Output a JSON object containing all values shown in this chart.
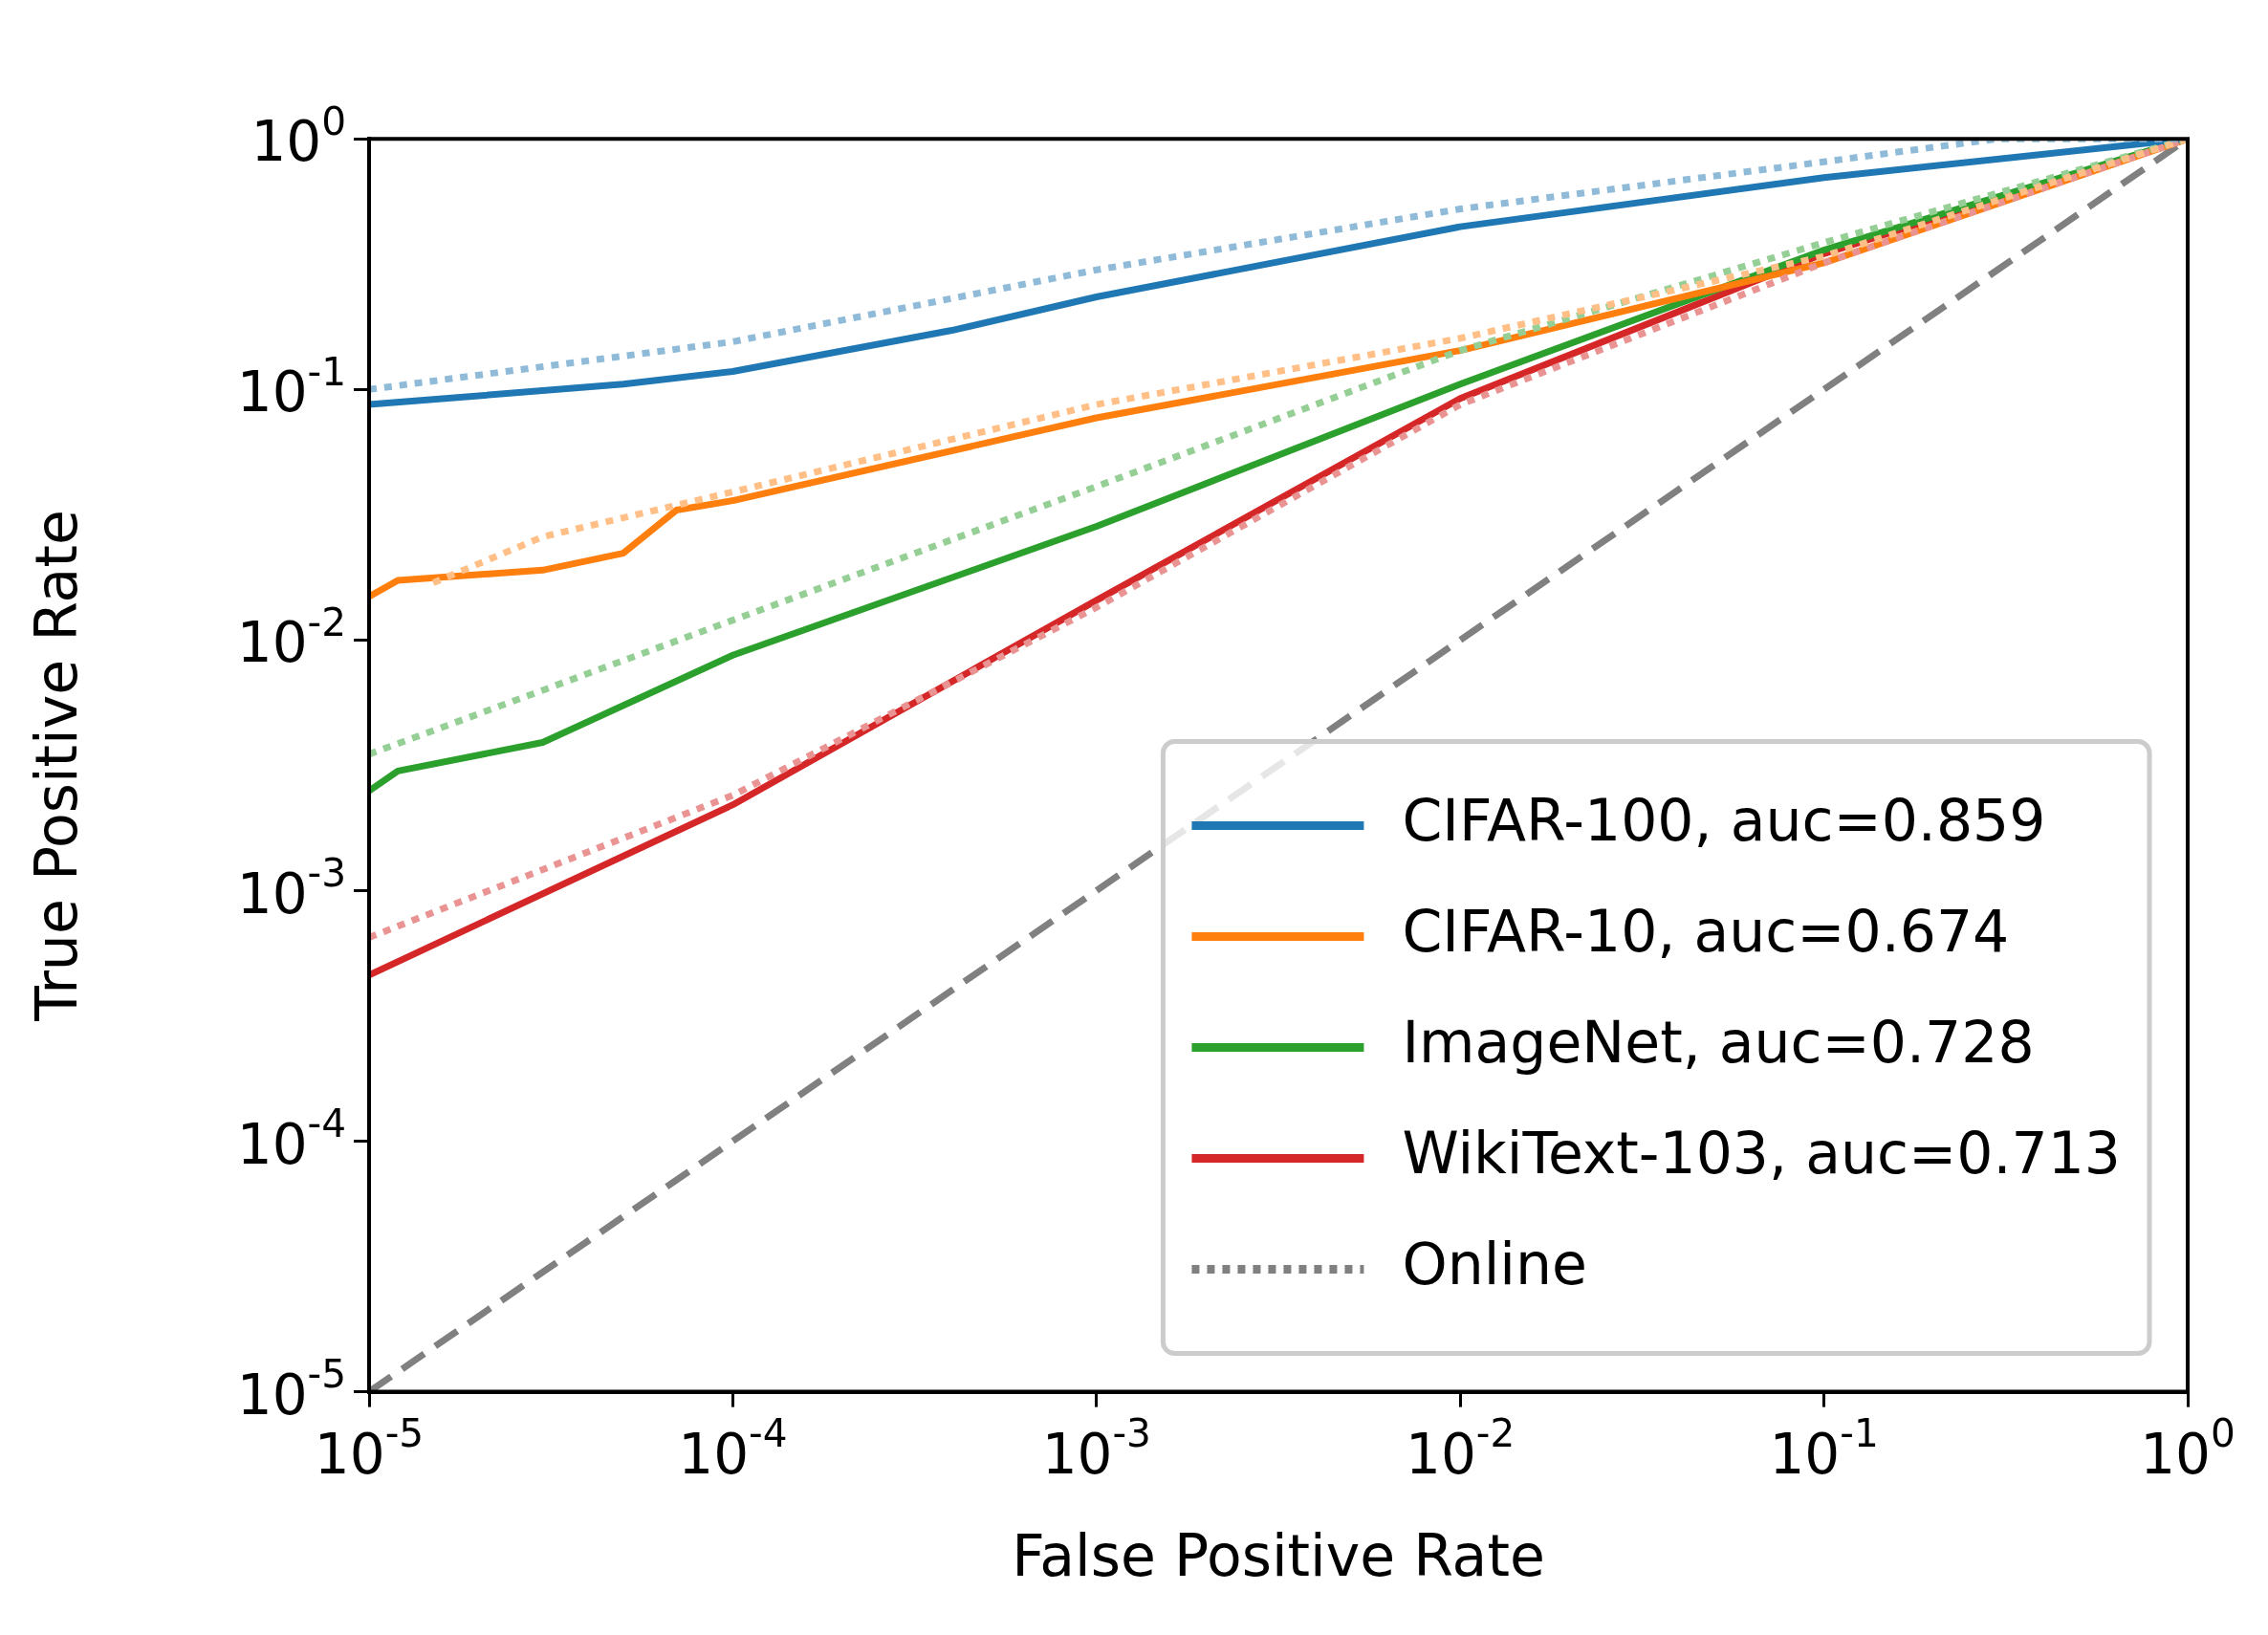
{
  "chart_data": {
    "type": "line",
    "xlabel": "False Positive Rate",
    "ylabel": "True Positive Rate",
    "log": "xy",
    "legend": "bottom right",
    "grid": false,
    "xlim": [
      1e-05,
      1
    ],
    "ylim": [
      1e-05,
      1
    ],
    "xticks": [
      {
        "value": 1e-05,
        "label": "10$^{-5}$"
      },
      {
        "value": 0.0001,
        "label": "10$^{-4}$"
      },
      {
        "value": 0.001,
        "label": "10$^{-3}$"
      },
      {
        "value": 0.01,
        "label": "10$^{-2}$"
      },
      {
        "value": 0.1,
        "label": "10$^{-1}$"
      },
      {
        "value": 1,
        "label": "10$^{0}$"
      }
    ],
    "yticks": [
      {
        "value": 1e-05,
        "label": "10$^{-5}$"
      },
      {
        "value": 0.0001,
        "label": "10$^{-4}$"
      },
      {
        "value": 0.001,
        "label": "10$^{-3}$"
      },
      {
        "value": 0.01,
        "label": "10$^{-2}$"
      },
      {
        "value": 0.1,
        "label": "10$^{-1}$"
      },
      {
        "value": 1,
        "label": "10$^{0}$"
      }
    ],
    "series": [
      {
        "color": "#8fbbd9",
        "line_style": "dotted",
        "x": [
          1e-05,
          0.0001,
          0.001,
          0.01,
          0.1,
          0.3,
          1
        ],
        "values": [
          0.1,
          0.155,
          0.3,
          0.525,
          0.81,
          1,
          1
        ]
      },
      {
        "color": "#ffbf86",
        "line_style": "dotted",
        "x": [
          1.5e-05,
          3e-05,
          0.0001,
          0.001,
          0.01,
          0.1,
          1
        ],
        "values": [
          0.0169,
          0.0258,
          0.039,
          0.087,
          0.16,
          0.34,
          1
        ]
      },
      {
        "color": "#95cf95",
        "line_style": "dotted",
        "x": [
          1e-05,
          0.0001,
          0.001,
          0.01,
          0.1,
          1
        ],
        "values": [
          0.0035,
          0.012,
          0.041,
          0.143,
          0.385,
          1
        ]
      },
      {
        "color": "#ea9393",
        "line_style": "dotted",
        "x": [
          1e-05,
          0.0001,
          0.001,
          0.01,
          0.1,
          1
        ],
        "values": [
          0.00065,
          0.0024,
          0.0135,
          0.087,
          0.32,
          1
        ]
      },
      {
        "name": "CIFAR-100, auc=0.859",
        "color": "#1f77b4",
        "line_style": "solid",
        "x": [
          1e-05,
          5e-05,
          0.0001,
          0.0004,
          0.001,
          0.01,
          0.1,
          1
        ],
        "values": [
          0.087,
          0.105,
          0.118,
          0.172,
          0.234,
          0.446,
          0.7,
          1
        ]
      },
      {
        "name": "CIFAR-10, auc=0.674",
        "color": "#ff7f0e",
        "line_style": "solid",
        "x": [
          1e-05,
          1.2e-05,
          3e-05,
          5e-05,
          7e-05,
          0.0001,
          0.001,
          0.01,
          0.1,
          1
        ],
        "values": [
          0.0149,
          0.0173,
          0.019,
          0.0222,
          0.033,
          0.036,
          0.077,
          0.143,
          0.32,
          1
        ]
      },
      {
        "name": "ImageNet, auc=0.728",
        "color": "#2ca02c",
        "line_style": "solid",
        "x": [
          1e-05,
          1.2e-05,
          3e-05,
          0.0001,
          0.001,
          0.01,
          0.1,
          1
        ],
        "values": [
          0.0025,
          0.003,
          0.0039,
          0.0087,
          0.0284,
          0.105,
          0.36,
          1
        ]
      },
      {
        "name": "WikiText-103, auc=0.713",
        "color": "#d62728",
        "line_style": "solid",
        "x": [
          1e-05,
          0.0001,
          0.001,
          0.01,
          0.1,
          1
        ],
        "values": [
          0.00046,
          0.0022,
          0.0144,
          0.092,
          0.348,
          1
        ]
      },
      {
        "name": "Online",
        "color": "#808080",
        "line_style": "dotted"
      },
      {
        "color": "#808080",
        "line_style": "dashed",
        "x": [
          1e-05,
          1
        ],
        "values": [
          1e-05,
          1
        ]
      }
    ]
  }
}
